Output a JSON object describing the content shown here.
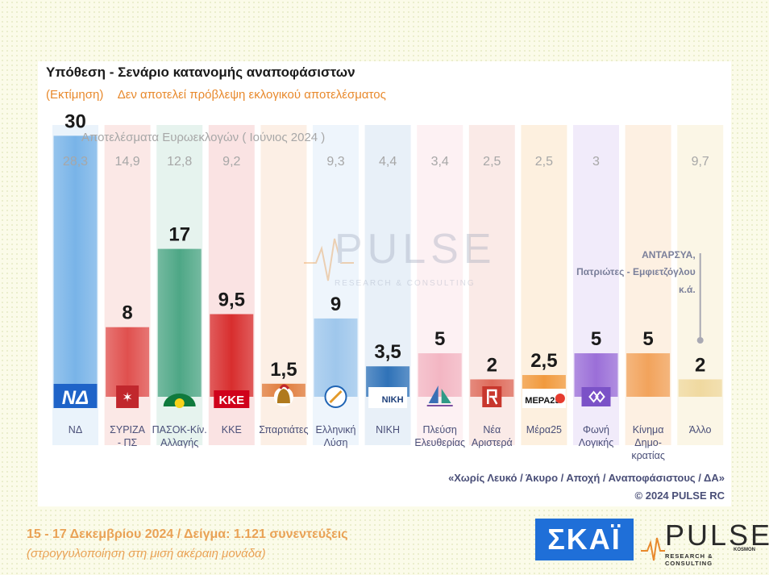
{
  "header": {
    "title": "Υπόθεση - Σενάριο κατανομής αναποφάσιστων",
    "subtitle_left": "(Εκτίμηση)",
    "subtitle_right": "Δεν αποτελεί πρόβλεψη εκλογικού αποτελέσματος"
  },
  "euro_caption": "Αποτελέσματα Ευρωεκλογών  ( Ιούνιος 2024 )",
  "watermark": {
    "word": "PULSE",
    "sub": "RESEARCH & CONSULTING"
  },
  "annotation": {
    "lines": [
      "ΑΝΤΑΡΣΥΑ,",
      "Πατριώτες - Εμφιετζόγλου",
      "κ.ά."
    ]
  },
  "chart_data": {
    "type": "bar",
    "title": "Υπόθεση - Σενάριο κατανομής αναποφάσιστων",
    "ylim": [
      0,
      33
    ],
    "categories": [
      "ΝΔ",
      "ΣΥΡΙΖΑ - ΠΣ",
      "ΠΑΣΟΚ-Κίν. Αλλαγής",
      "ΚΚΕ",
      "Σπαρτιάτες",
      "Ελληνική Λύση",
      "ΝΙΚΗ",
      "Πλεύση Ελευθερίας",
      "Νέα Αριστερά",
      "Μέρα25",
      "Φωνή Λογικής",
      "Κίνημα Δημο-κρατίας",
      "Άλλο"
    ],
    "category_lines": [
      [
        "ΝΔ"
      ],
      [
        "ΣΥΡΙΖΑ",
        "- ΠΣ"
      ],
      [
        "ΠΑΣΟΚ-Κίν.",
        "Αλλαγής"
      ],
      [
        "ΚΚΕ"
      ],
      [
        "Σπαρτιάτες"
      ],
      [
        "Ελληνική",
        "Λύση"
      ],
      [
        "ΝΙΚΗ"
      ],
      [
        "Πλεύση",
        "Ελευθερίας"
      ],
      [
        "Νέα",
        "Αριστερά"
      ],
      [
        "Μέρα25"
      ],
      [
        "Φωνή",
        "Λογικής"
      ],
      [
        "Κίνημα",
        "Δημο-",
        "κρατίας"
      ],
      [
        "Άλλο"
      ]
    ],
    "series": [
      {
        "name": "Εκτίμηση",
        "values": [
          30,
          8,
          17,
          9.5,
          1.5,
          9,
          3.5,
          5,
          2,
          2.5,
          5,
          5,
          2
        ],
        "labels": [
          "30",
          "8",
          "17",
          "9,5",
          "1,5",
          "9",
          "3,5",
          "5",
          "2",
          "2,5",
          "5",
          "5",
          "2"
        ]
      },
      {
        "name": "Αποτελέσματα Ευρωεκλογών ( Ιούνιος 2024 )",
        "values": [
          28.3,
          14.9,
          12.8,
          9.2,
          null,
          9.3,
          4.4,
          3.4,
          2.5,
          2.5,
          3,
          null,
          9.7
        ],
        "labels": [
          "28,3",
          "14,9",
          "12,8",
          "9,2",
          "",
          "9,3",
          "4,4",
          "3,4",
          "2,5",
          "2,5",
          "3",
          "",
          "9,7"
        ]
      }
    ],
    "colors": {
      "bars": [
        "#79b4e8",
        "#e0504e",
        "#4ea786",
        "#d82e2e",
        "#e07b3a",
        "#9fc7ec",
        "#2f72b8",
        "#f3b6c3",
        "#de6a5a",
        "#f19a3e",
        "#9b6fd8",
        "#f2a35c",
        "#f0d9a0"
      ],
      "columns": [
        "#eaf3fb",
        "#fbe8e6",
        "#e6f3ee",
        "#fae3e3",
        "#fcefe5",
        "#eef5fc",
        "#e8f0f8",
        "#fdf1f3",
        "#faeae7",
        "#fdf0df",
        "#f1ebfa",
        "#fdf0e2",
        "#fbf6e6"
      ]
    },
    "logos": [
      "nd-logo",
      "syriza-logo",
      "pasok-logo",
      "kke-logo",
      "spartiates-logo",
      "elliniki-lysi-logo",
      "niki-logo",
      "plefsi-logo",
      "nea-aristera-logo",
      "mera25-logo",
      "foni-logikis-logo",
      "kinima-dimokratias-logo",
      null
    ],
    "logo_text": {
      "nd-logo": "ΝΔ",
      "kke-logo": "ΚΚΕ",
      "niki-logo": "ΝΙΚΗ",
      "mera25-logo": "ΜΕΡΑ25"
    }
  },
  "footnotes": {
    "line1": "«Χωρίς Λευκό / Άκυρο / Αποχή / Αναποφάσιστους / ΔΑ»",
    "line2": "©  2024  PULSE RC"
  },
  "footer": {
    "date_sample": "15 - 17 Δεκεμβρίου 2024  /  Δείγμα:  1.121 συνεντεύξεις",
    "rounding_note": "(στρογγυλοποίηση στη μισή ακέραιη μονάδα)"
  },
  "logos": {
    "skai": "ΣΚΑΪ",
    "pulse_word": "PULSE",
    "pulse_sub": "RESEARCH & CONSULTING",
    "pulse_kosmon": "KOSMON"
  }
}
